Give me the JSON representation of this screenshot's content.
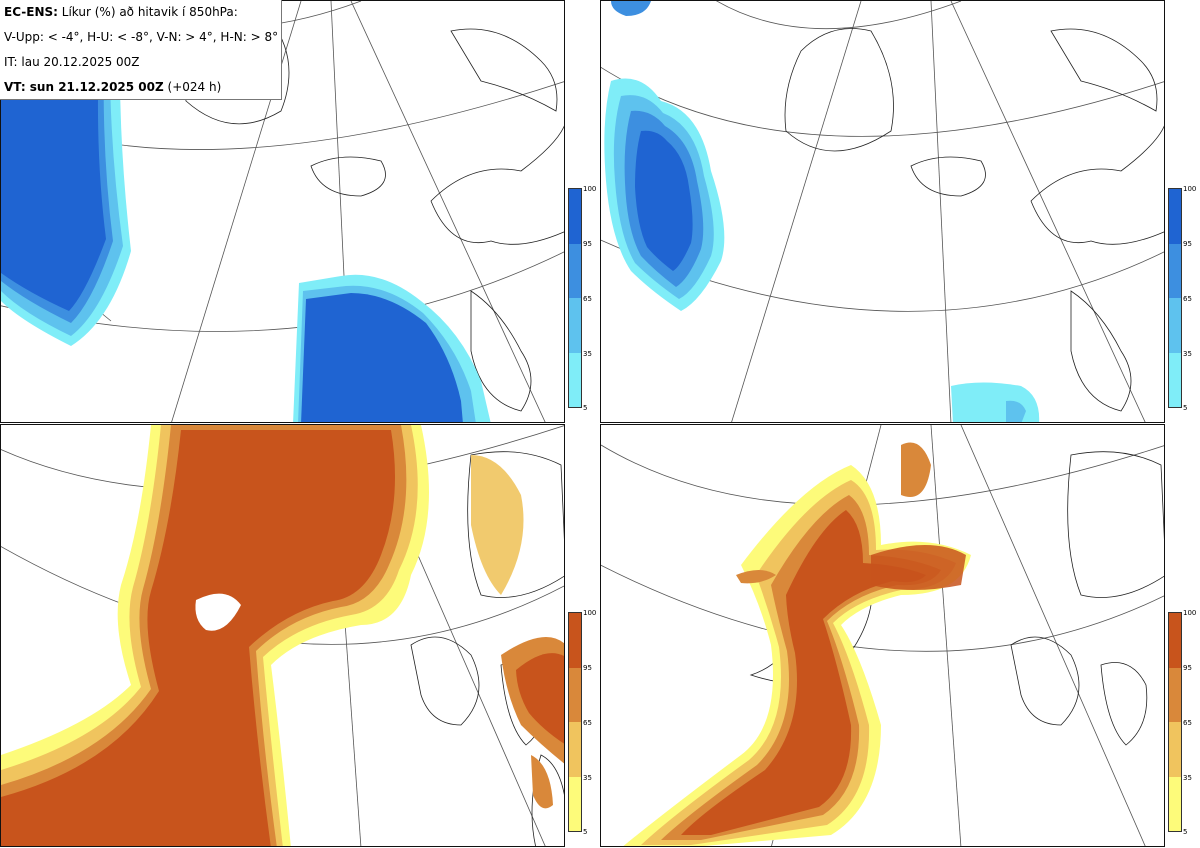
{
  "info": {
    "model": "EC-ENS:",
    "title": "Líkur (%) að hitavik í 850hPa:",
    "categories": "V-Upp: < -4°, H-U: < -8°, V-N: > 4°, H-N: > 8°",
    "initial_time": "IT: lau 20.12.2025 00Z",
    "valid_label": "VT: sun 21.12.2025 00Z",
    "lead": "(+024 h)"
  },
  "panels": [
    {
      "id": "V-Upp",
      "threshold": "< -4°"
    },
    {
      "id": "H-U",
      "threshold": "< -8°"
    },
    {
      "id": "V-N",
      "threshold": "> 4°"
    },
    {
      "id": "H-N",
      "threshold": "> 8°"
    }
  ],
  "colorbar": {
    "ticks": [
      "100",
      "95",
      "65",
      "35",
      "5"
    ],
    "cold_colors": [
      "#1f64d2",
      "#3d8fe0",
      "#5ec2ee",
      "#7fedf8"
    ],
    "warm_colors": [
      "#c8541c",
      "#d9883a",
      "#f0c45e",
      "#fdfb7a"
    ]
  }
}
